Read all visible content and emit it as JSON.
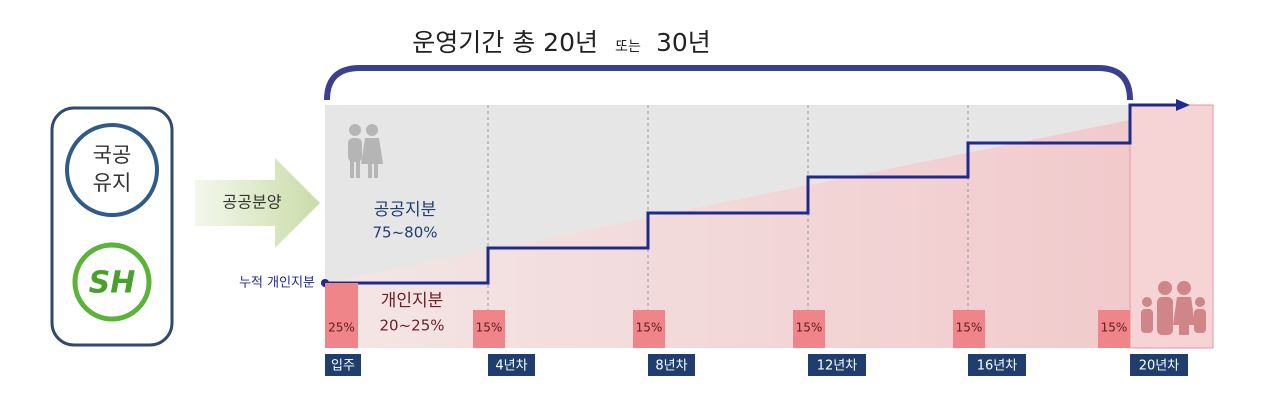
{
  "title": {
    "main": "운영기간 총 20년",
    "connector": "또는",
    "end": "30년"
  },
  "left_panel": {
    "circle_line1": "국공",
    "circle_line2": "유지",
    "logo": "SH"
  },
  "arrow_label": "공공분양",
  "cumulative_label": "누적 개인지분",
  "public_share": {
    "label": "공공지분",
    "range": "75~80%"
  },
  "private_share": {
    "label": "개인지분",
    "range": "20~25%"
  },
  "steps": [
    {
      "share": "25%",
      "label": "입주"
    },
    {
      "share": "15%",
      "label": "4년차"
    },
    {
      "share": "15%",
      "label": "8년차"
    },
    {
      "share": "15%",
      "label": "12년차"
    },
    {
      "share": "15%",
      "label": "16년차"
    },
    {
      "share": "15%",
      "label": "20년차"
    }
  ]
}
